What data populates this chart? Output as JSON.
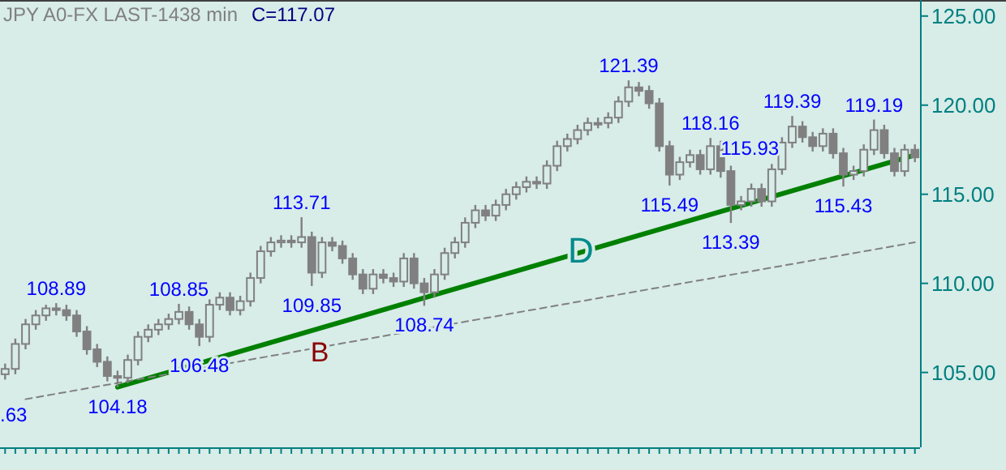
{
  "chart_data": {
    "type": "candlestick",
    "title": "JPY A0-FX LAST-1438 min",
    "subtitle": "C=117.07",
    "color": "#808080",
    "categories": [
      null,
      null,
      null,
      null,
      null,
      null,
      null,
      null,
      null,
      null,
      null,
      null,
      null,
      null,
      null,
      null,
      null,
      null,
      null,
      null,
      null,
      null,
      null,
      null,
      null,
      null,
      null,
      null,
      null,
      null,
      null,
      null,
      null,
      null,
      null,
      null,
      null,
      null,
      null,
      null,
      null,
      null,
      null,
      null,
      null,
      null,
      null,
      null,
      null,
      null,
      null,
      null,
      null,
      null,
      null,
      null,
      null,
      null,
      null,
      null,
      null,
      null,
      null,
      null,
      null,
      null,
      null,
      null,
      null,
      null,
      null,
      null,
      null,
      null,
      null,
      null,
      null,
      null,
      null,
      null,
      null,
      null,
      null,
      null,
      null,
      null,
      null,
      null,
      null,
      null
    ],
    "ohlc": [
      [
        104.9,
        105.5,
        104.6,
        105.2
      ],
      [
        105.2,
        106.9,
        104.9,
        106.6
      ],
      [
        106.6,
        108.0,
        106.3,
        107.7
      ],
      [
        107.7,
        108.5,
        107.4,
        108.2
      ],
      [
        108.2,
        108.8,
        107.9,
        108.6
      ],
      [
        108.6,
        108.89,
        108.2,
        108.5
      ],
      [
        108.5,
        108.8,
        107.9,
        108.2
      ],
      [
        108.2,
        108.5,
        107.0,
        107.3
      ],
      [
        107.3,
        107.6,
        106.0,
        106.3
      ],
      [
        106.3,
        106.6,
        105.3,
        105.6
      ],
      [
        105.6,
        105.9,
        104.5,
        104.8
      ],
      [
        104.8,
        105.1,
        104.18,
        104.7
      ],
      [
        104.7,
        106.0,
        104.4,
        105.7
      ],
      [
        105.7,
        107.3,
        105.4,
        107.0
      ],
      [
        107.0,
        107.7,
        106.7,
        107.4
      ],
      [
        107.4,
        108.0,
        107.1,
        107.7
      ],
      [
        107.7,
        108.3,
        107.4,
        108.0
      ],
      [
        108.0,
        108.85,
        107.7,
        108.4
      ],
      [
        108.4,
        108.7,
        107.4,
        107.7
      ],
      [
        107.7,
        108.0,
        106.48,
        107.0
      ],
      [
        107.0,
        109.1,
        106.7,
        108.8
      ],
      [
        108.8,
        109.5,
        108.5,
        109.2
      ],
      [
        109.2,
        109.5,
        108.2,
        108.5
      ],
      [
        108.5,
        109.3,
        108.2,
        109.0
      ],
      [
        109.0,
        110.6,
        108.7,
        110.3
      ],
      [
        110.3,
        112.1,
        110.0,
        111.8
      ],
      [
        111.8,
        112.6,
        111.5,
        112.3
      ],
      [
        112.3,
        112.7,
        112.0,
        112.4
      ],
      [
        112.4,
        112.7,
        112.0,
        112.3
      ],
      [
        112.3,
        113.71,
        112.0,
        112.6
      ],
      [
        112.6,
        112.9,
        109.85,
        110.6
      ],
      [
        110.6,
        112.6,
        110.3,
        112.3
      ],
      [
        112.3,
        112.6,
        111.8,
        112.1
      ],
      [
        112.1,
        112.4,
        111.1,
        111.4
      ],
      [
        111.4,
        111.7,
        110.2,
        110.5
      ],
      [
        110.5,
        110.8,
        109.4,
        109.7
      ],
      [
        109.7,
        110.8,
        109.4,
        110.5
      ],
      [
        110.5,
        110.8,
        110.0,
        110.3
      ],
      [
        110.3,
        110.6,
        109.8,
        110.1
      ],
      [
        110.1,
        111.7,
        109.8,
        111.4
      ],
      [
        111.4,
        111.7,
        109.7,
        110.0
      ],
      [
        110.0,
        110.3,
        108.74,
        109.5
      ],
      [
        109.5,
        110.8,
        109.2,
        110.5
      ],
      [
        110.5,
        112.0,
        110.2,
        111.7
      ],
      [
        111.7,
        112.6,
        111.4,
        112.3
      ],
      [
        112.3,
        113.7,
        112.0,
        113.4
      ],
      [
        113.4,
        114.4,
        113.1,
        114.1
      ],
      [
        114.1,
        114.4,
        113.5,
        113.8
      ],
      [
        113.8,
        114.7,
        113.5,
        114.4
      ],
      [
        114.4,
        115.3,
        114.1,
        115.0
      ],
      [
        115.0,
        115.7,
        114.7,
        115.4
      ],
      [
        115.4,
        116.0,
        115.1,
        115.7
      ],
      [
        115.7,
        116.0,
        115.3,
        115.6
      ],
      [
        115.6,
        116.9,
        115.3,
        116.6
      ],
      [
        116.6,
        118.0,
        116.3,
        117.7
      ],
      [
        117.7,
        118.4,
        117.4,
        118.1
      ],
      [
        118.1,
        118.9,
        117.8,
        118.6
      ],
      [
        118.6,
        119.3,
        118.3,
        119.0
      ],
      [
        119.0,
        119.3,
        118.7,
        119.0
      ],
      [
        119.0,
        119.6,
        118.7,
        119.3
      ],
      [
        119.3,
        120.5,
        119.0,
        120.2
      ],
      [
        120.2,
        121.39,
        119.9,
        121.0
      ],
      [
        121.0,
        121.3,
        120.5,
        120.8
      ],
      [
        120.8,
        121.1,
        119.8,
        120.1
      ],
      [
        120.1,
        120.4,
        117.4,
        117.7
      ],
      [
        117.7,
        118.0,
        115.49,
        116.1
      ],
      [
        116.1,
        117.1,
        115.8,
        116.8
      ],
      [
        116.8,
        117.5,
        116.5,
        117.2
      ],
      [
        117.2,
        117.5,
        116.1,
        116.4
      ],
      [
        116.4,
        118.16,
        116.1,
        117.7
      ],
      [
        117.7,
        118.0,
        115.93,
        116.3
      ],
      [
        116.3,
        116.6,
        113.39,
        114.4
      ],
      [
        114.4,
        114.9,
        114.1,
        114.6
      ],
      [
        114.6,
        115.6,
        114.3,
        115.3
      ],
      [
        115.3,
        115.6,
        114.3,
        114.6
      ],
      [
        114.6,
        116.7,
        114.3,
        116.4
      ],
      [
        116.4,
        118.2,
        116.1,
        117.9
      ],
      [
        117.9,
        119.39,
        117.6,
        118.8
      ],
      [
        118.8,
        119.1,
        117.9,
        118.2
      ],
      [
        118.2,
        118.5,
        117.4,
        117.7
      ],
      [
        117.7,
        118.7,
        117.4,
        118.4
      ],
      [
        118.4,
        118.7,
        117.0,
        117.3
      ],
      [
        117.3,
        117.6,
        115.43,
        116.1
      ],
      [
        116.1,
        116.6,
        115.8,
        116.3
      ],
      [
        116.3,
        117.8,
        116.0,
        117.5
      ],
      [
        117.5,
        119.19,
        117.2,
        118.6
      ],
      [
        118.6,
        118.9,
        117.0,
        117.3
      ],
      [
        117.3,
        117.6,
        116.0,
        116.3
      ],
      [
        116.3,
        117.8,
        116.0,
        117.5
      ],
      [
        117.5,
        117.8,
        116.8,
        117.07
      ]
    ],
    "value_labels": [
      null,
      null,
      null,
      null,
      null,
      "108.89",
      null,
      null,
      null,
      null,
      null,
      "104.18",
      null,
      null,
      null,
      null,
      null,
      "108.85",
      null,
      "106.48",
      null,
      null,
      null,
      null,
      null,
      null,
      null,
      null,
      null,
      "113.71",
      "109.85",
      null,
      null,
      null,
      null,
      null,
      null,
      null,
      null,
      null,
      null,
      "108.74",
      null,
      null,
      null,
      null,
      null,
      null,
      null,
      null,
      null,
      null,
      null,
      null,
      null,
      null,
      null,
      null,
      null,
      null,
      null,
      "121.39",
      null,
      null,
      null,
      "115.49",
      null,
      null,
      null,
      "118.16",
      "115.93",
      "113.39",
      null,
      null,
      null,
      null,
      null,
      "119.39",
      null,
      null,
      null,
      null,
      "115.43",
      null,
      null,
      "119.19",
      null,
      null,
      null,
      null
    ],
    "series": [
      {
        "type": "line",
        "color": "#008000",
        "line_style": "solid",
        "values": [
          null,
          null,
          null,
          null,
          null,
          null,
          null,
          null,
          null,
          null,
          null,
          104.18,
          null,
          null,
          null,
          null,
          null,
          null,
          null,
          null,
          null,
          null,
          null,
          null,
          null,
          null,
          null,
          null,
          null,
          null,
          null,
          null,
          null,
          null,
          null,
          null,
          null,
          null,
          null,
          null,
          null,
          null,
          null,
          null,
          null,
          null,
          null,
          null,
          null,
          null,
          null,
          null,
          null,
          null,
          null,
          null,
          null,
          null,
          null,
          null,
          null,
          null,
          null,
          null,
          null,
          null,
          null,
          null,
          null,
          null,
          null,
          null,
          null,
          null,
          null,
          null,
          null,
          null,
          null,
          null,
          null,
          null,
          null,
          null,
          null,
          null,
          null,
          null,
          null,
          117.2
        ]
      },
      {
        "type": "line",
        "color": "#808080",
        "line_style": "dashed",
        "values": [
          null,
          null,
          103.5,
          null,
          null,
          null,
          null,
          null,
          null,
          null,
          null,
          null,
          null,
          null,
          null,
          null,
          null,
          null,
          null,
          null,
          null,
          null,
          null,
          null,
          null,
          null,
          null,
          null,
          null,
          null,
          null,
          null,
          null,
          null,
          null,
          null,
          null,
          null,
          null,
          null,
          null,
          null,
          null,
          null,
          null,
          null,
          null,
          null,
          null,
          null,
          null,
          null,
          null,
          null,
          null,
          null,
          null,
          null,
          null,
          null,
          null,
          null,
          null,
          null,
          null,
          null,
          null,
          null,
          null,
          null,
          null,
          null,
          null,
          null,
          null,
          null,
          null,
          null,
          null,
          null,
          null,
          null,
          null,
          null,
          null,
          null,
          null,
          null,
          null,
          112.3
        ]
      }
    ],
    "ylim": [
      100.8,
      125.9
    ],
    "yticks": [
      {
        "value": 105,
        "label": "105.00"
      },
      {
        "value": 110,
        "label": "110.00"
      },
      {
        "value": 115,
        "label": "115.00"
      },
      {
        "value": 120,
        "label": "120.00"
      },
      {
        "value": 125,
        "label": "125.00"
      }
    ],
    "annotations": [
      ".63",
      "B",
      "D"
    ]
  }
}
